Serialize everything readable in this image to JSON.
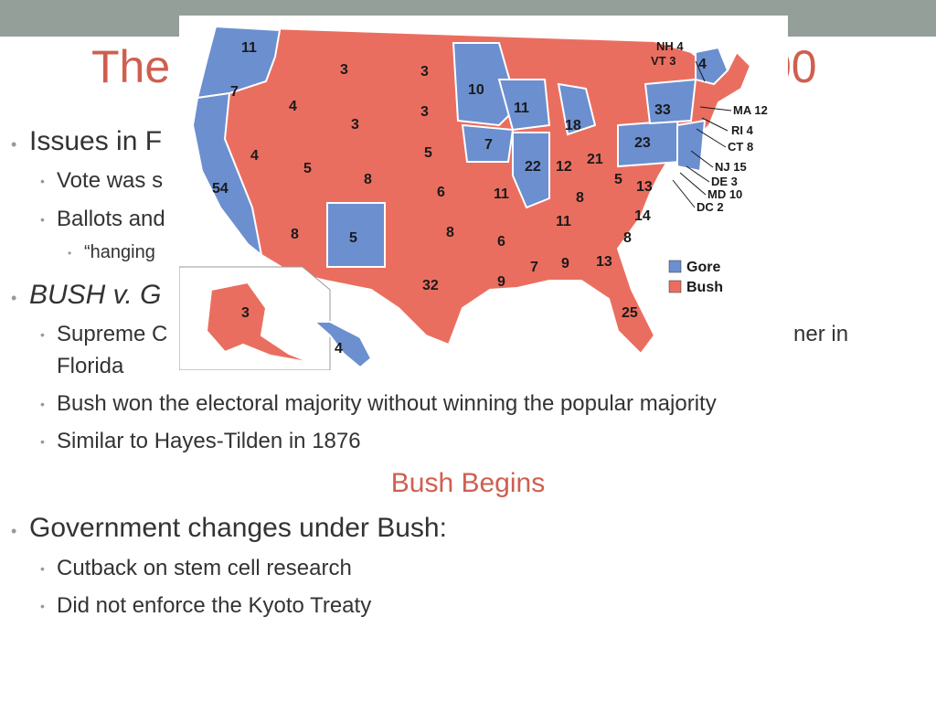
{
  "slide": {
    "title_left": "The",
    "title_right": "00",
    "bullets": [
      {
        "text": "Issues in F",
        "level": 1,
        "italic": false
      },
      {
        "text": "Vote was s",
        "level": 2,
        "italic": false
      },
      {
        "text": "Ballots and",
        "level": 2,
        "italic": false
      },
      {
        "text": "“hanging",
        "level": 3,
        "italic": false
      },
      {
        "text": "BUSH v. G",
        "level": 1,
        "italic": true
      },
      {
        "text": "Supreme C",
        "level": 2,
        "italic": false
      },
      {
        "text": "ner in",
        "level": 2,
        "italic": false
      },
      {
        "text": "Florida",
        "level": 2,
        "italic": false
      },
      {
        "text": "Bush won the electoral majority without winning the popular majority",
        "level": 2,
        "italic": false
      },
      {
        "text": "Similar to Hayes-Tilden in 1876",
        "level": 2,
        "italic": false
      }
    ],
    "section_heading": "Bush Begins",
    "bullets2": [
      {
        "text": "Government changes under Bush:",
        "level": 1
      },
      {
        "text": "Cutback on stem cell research",
        "level": 2
      },
      {
        "text": "Did not enforce the Kyoto Treaty",
        "level": 2
      }
    ]
  },
  "map": {
    "legend": [
      {
        "label": "Gore",
        "color": "#6b8fcf"
      },
      {
        "label": "Bush",
        "color": "#ea6e5f"
      }
    ],
    "state_labels": [
      "11",
      "7",
      "3",
      "3",
      "10",
      "4",
      "3",
      "3",
      "11",
      "18",
      "4",
      "5",
      "8",
      "5",
      "7",
      "54",
      "6",
      "11",
      "8",
      "5",
      "22",
      "12",
      "21",
      "13",
      "8",
      "8",
      "5",
      "8",
      "6",
      "11",
      "14",
      "3",
      "7",
      "9",
      "13",
      "8",
      "32",
      "9",
      "25",
      "4",
      "33",
      "23"
    ],
    "east_callouts": [
      "NH 4",
      "VT 3",
      "MA 12",
      "RI 4",
      "CT 8",
      "NJ 15",
      "DE 3",
      "MD 10",
      "DC 2"
    ],
    "colors": {
      "gore": "#6b8fcf",
      "bush": "#ea6e5f",
      "border": "#ffffff"
    }
  }
}
